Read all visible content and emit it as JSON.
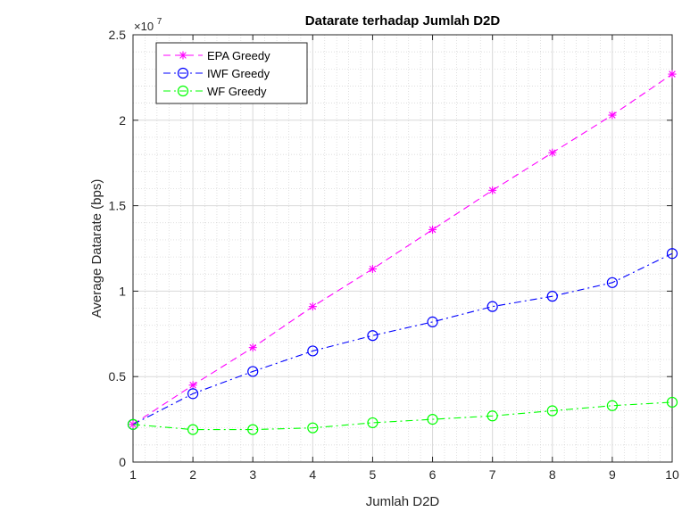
{
  "chart_data": {
    "type": "line",
    "title": "Datarate terhadap Jumlah D2D",
    "xlabel": "Jumlah D2D",
    "ylabel": "Average Datarate (bps)",
    "exponent_label": "×10",
    "exponent_power": "7",
    "xlim": [
      1,
      10
    ],
    "ylim": [
      0,
      2.5
    ],
    "x_ticks": [
      1,
      2,
      3,
      4,
      5,
      6,
      7,
      8,
      9,
      10
    ],
    "y_ticks": [
      0,
      0.5,
      1,
      1.5,
      2,
      2.5
    ],
    "y_tick_labels": [
      "0",
      "0.5",
      "1",
      "1.5",
      "2",
      "2.5"
    ],
    "grid": true,
    "minor_grid": true,
    "legend_position": "top-left",
    "x": [
      1,
      2,
      3,
      4,
      5,
      6,
      7,
      8,
      9,
      10
    ],
    "series": [
      {
        "name": "EPA Greedy",
        "color": "#ff00ff",
        "marker": "asterisk",
        "dash": "dashed",
        "values": [
          0.22,
          0.45,
          0.67,
          0.91,
          1.13,
          1.36,
          1.59,
          1.81,
          2.03,
          2.27
        ]
      },
      {
        "name": "IWF Greedy",
        "color": "#0000ff",
        "marker": "circle",
        "dash": "dashdot",
        "values": [
          0.22,
          0.4,
          0.53,
          0.65,
          0.74,
          0.82,
          0.91,
          0.97,
          1.05,
          1.22
        ]
      },
      {
        "name": "WF Greedy",
        "color": "#00ff00",
        "marker": "circle",
        "dash": "dashdot",
        "values": [
          0.22,
          0.19,
          0.19,
          0.2,
          0.23,
          0.25,
          0.27,
          0.3,
          0.33,
          0.35
        ]
      }
    ]
  }
}
